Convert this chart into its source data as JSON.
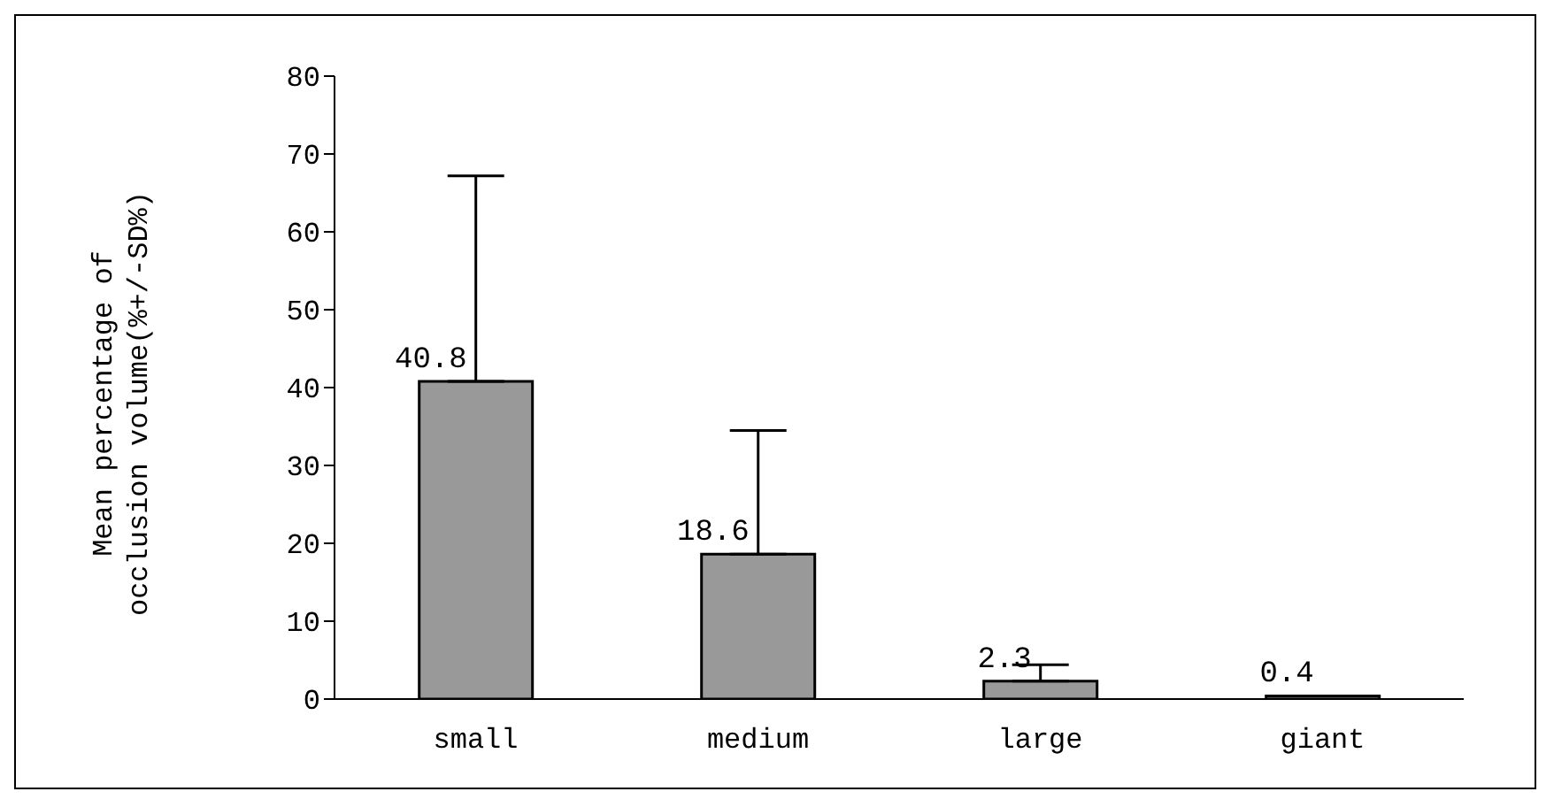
{
  "chart_data": {
    "type": "bar",
    "ylabel": "Mean percentage of occlusion volume(%+/-SD%)",
    "categories": [
      "small",
      "medium",
      "large",
      "giant"
    ],
    "values": [
      40.8,
      18.6,
      2.3,
      0.4
    ],
    "errors": [
      [
        40.8,
        67.2
      ],
      [
        18.6,
        34.5
      ],
      [
        2.3,
        4.4
      ],
      null
    ],
    "color": "#999999",
    "ylim": [
      0,
      80
    ],
    "yticks": [
      0,
      10,
      20,
      30,
      40,
      50,
      60,
      70,
      80
    ],
    "data_labels": true,
    "grid": false,
    "legend": false
  }
}
